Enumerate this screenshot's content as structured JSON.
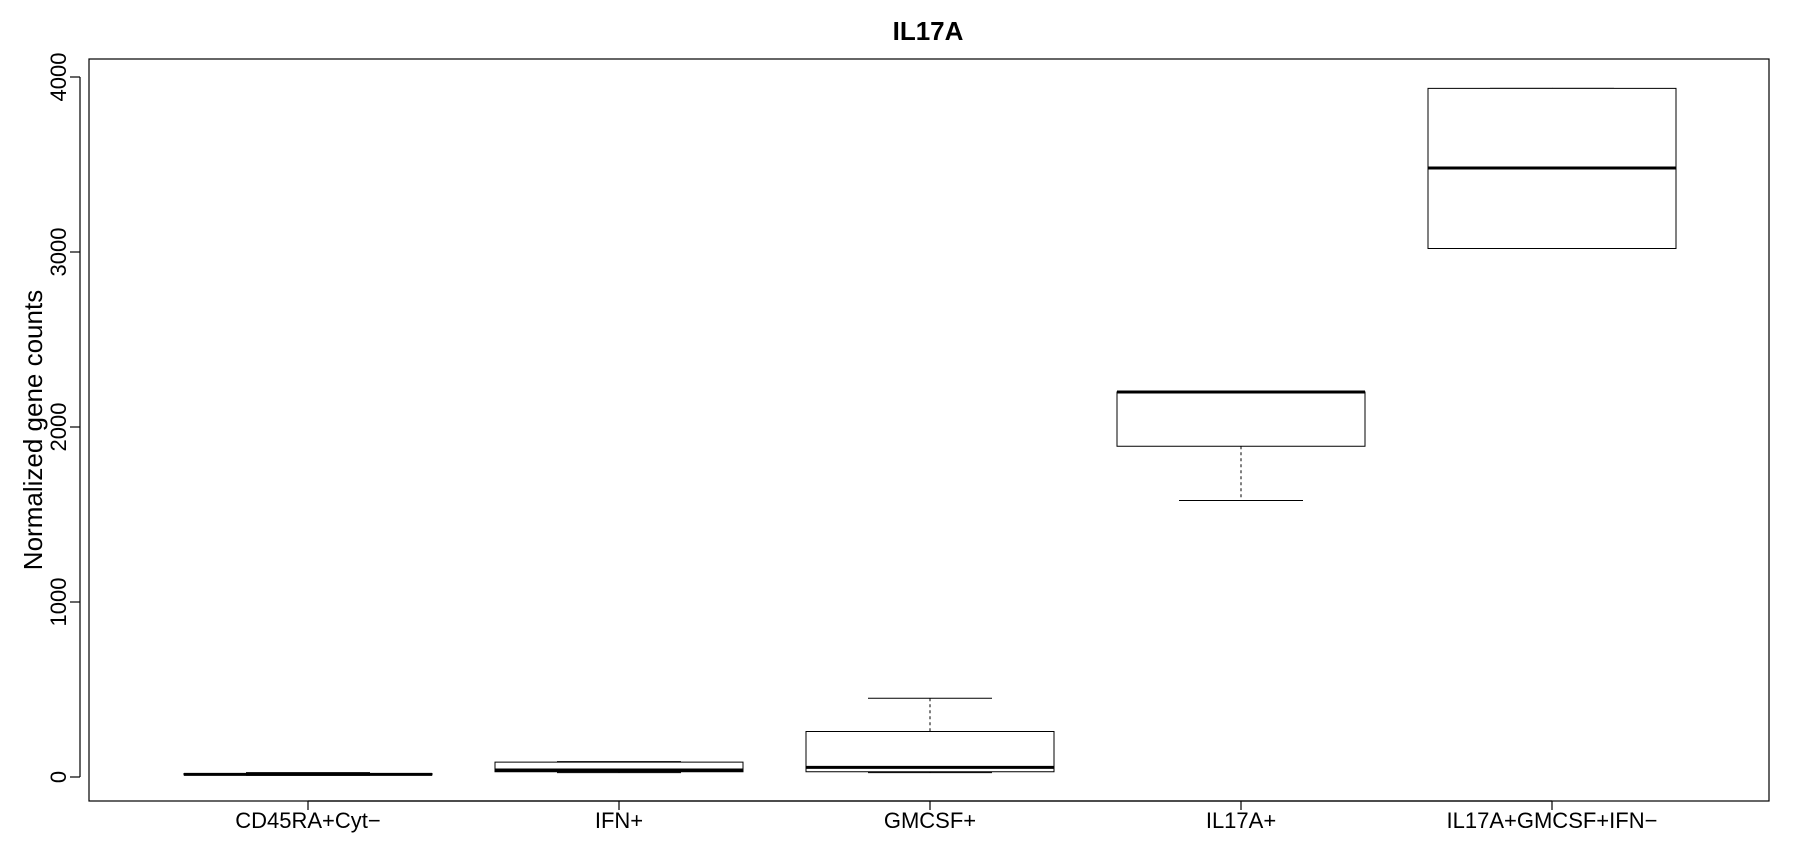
{
  "chart_data": {
    "type": "boxplot",
    "title": "IL17A",
    "xlabel": "",
    "ylabel": "Normalized gene counts",
    "ylim": [
      -140,
      4100
    ],
    "yticks": [
      0,
      1000,
      2000,
      3000,
      4000
    ],
    "grid": false,
    "legend": "none",
    "categories": [
      "CD45RA+Cyt−",
      "IFN+",
      "GMCSF+",
      "IL17A+",
      "IL17A+GMCSF+IFN−"
    ],
    "boxes": [
      {
        "min": 10,
        "q1": 12,
        "median": 15,
        "q3": 20,
        "max": 25
      },
      {
        "min": 25,
        "q1": 30,
        "median": 40,
        "q3": 85,
        "max": 88
      },
      {
        "min": 25,
        "q1": 30,
        "median": 55,
        "q3": 260,
        "max": 450
      },
      {
        "min": 1580,
        "q1": 1890,
        "median": 2200,
        "q3": 2200,
        "max": 2205
      },
      {
        "min": 3020,
        "q1": 3020,
        "median": 3480,
        "q3": 3935,
        "max": 3935
      }
    ]
  }
}
